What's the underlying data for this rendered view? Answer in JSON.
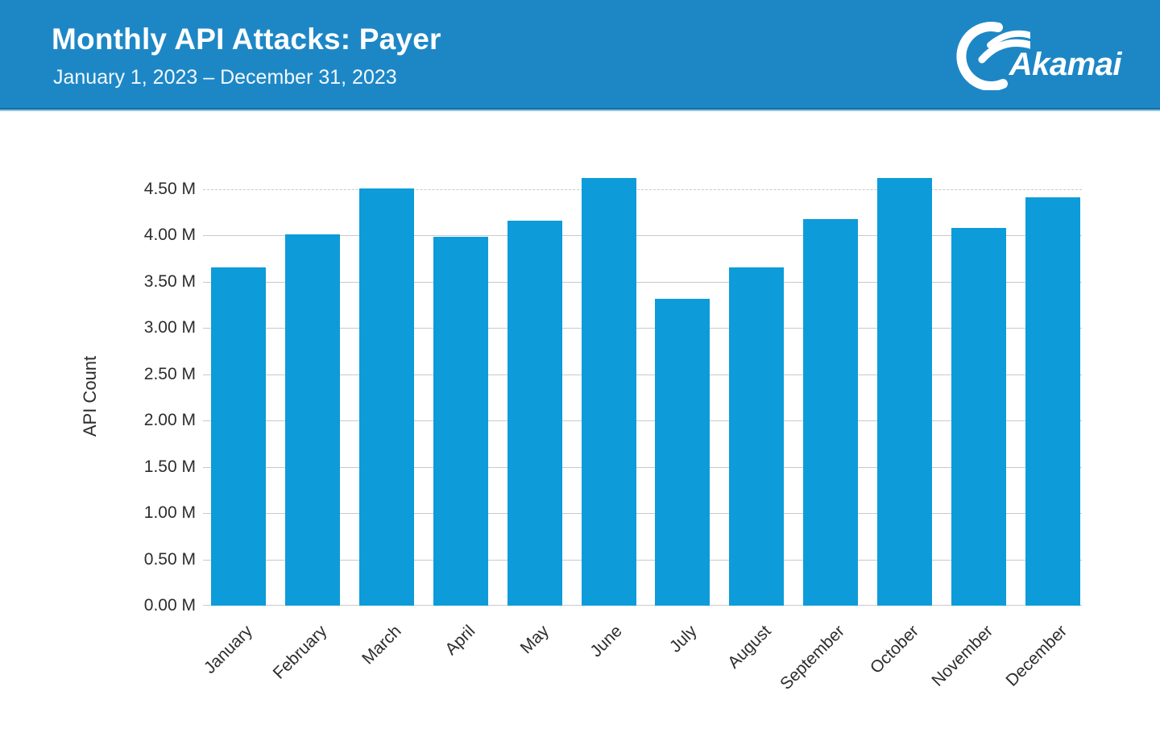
{
  "header": {
    "title": "Monthly API Attacks: Payer",
    "subtitle": "January 1, 2023 – December 31, 2023",
    "logo_text": "Akamai",
    "background_color": "#1d87c6",
    "text_color": "#ffffff"
  },
  "chart_data": {
    "type": "bar",
    "title": "Monthly API Attacks: Payer",
    "categories": [
      "January",
      "February",
      "March",
      "April",
      "May",
      "June",
      "July",
      "August",
      "September",
      "October",
      "November",
      "December"
    ],
    "values": [
      3.66,
      4.01,
      4.51,
      3.99,
      4.16,
      4.62,
      3.32,
      3.66,
      4.18,
      4.62,
      4.08,
      4.41
    ],
    "unit": "M",
    "xlabel": "",
    "ylabel": "API Count",
    "ylim": [
      0,
      4.8
    ],
    "ytick_step": 0.5,
    "ytick_labels": [
      "0.00 M",
      "0.50 M",
      "1.00 M",
      "1.50 M",
      "2.00 M",
      "2.50 M",
      "3.00 M",
      "3.50 M",
      "4.00 M",
      "4.50 M"
    ],
    "bar_color": "#0d9cd9",
    "gridline_color": "#c9c9c9",
    "grid": "horizontal",
    "legend": "none"
  }
}
